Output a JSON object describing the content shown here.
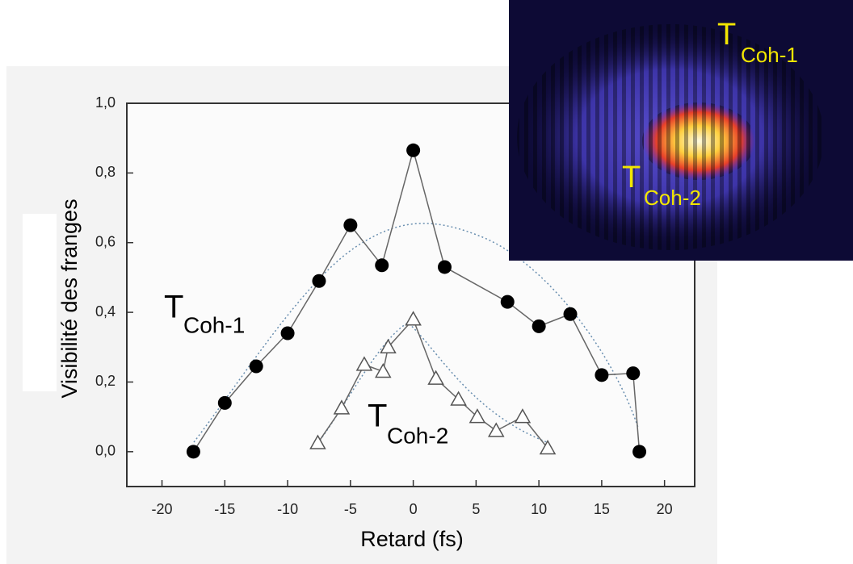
{
  "chart_data": {
    "type": "line",
    "xlabel": "Retard (fs)",
    "ylabel": "Visibilité des franges",
    "xlim": [
      -22.8,
      22.4
    ],
    "ylim": [
      -0.1,
      1.0
    ],
    "xticks": [
      -20,
      -15,
      -10,
      -5,
      0,
      5,
      10,
      15,
      20
    ],
    "yticks": [
      {
        "value": 0,
        "label": "0,0"
      },
      {
        "value": 0.2,
        "label": "0,2"
      },
      {
        "value": 0.4,
        "label": "0,4"
      },
      {
        "value": 0.6,
        "label": "0,6"
      },
      {
        "value": 0.8,
        "label": "0,8"
      },
      {
        "value": 1,
        "label": "1,0"
      }
    ],
    "series": [
      {
        "marker": "circle",
        "color": "#000000",
        "x": [
          -17.5,
          -15,
          -12.5,
          -10,
          -7.5,
          -5,
          -2.5,
          0,
          2.5,
          7.5,
          10,
          12.5,
          15,
          17.5,
          18
        ],
        "values": [
          0.0,
          0.14,
          0.245,
          0.34,
          0.49,
          0.65,
          0.535,
          0.865,
          0.53,
          0.43,
          0.36,
          0.395,
          0.22,
          0.225,
          0.0
        ]
      },
      {
        "marker": "triangle",
        "color": "#ffffff",
        "x": [
          -7.6,
          -5.7,
          -3.9,
          -2.4,
          -2.0,
          0,
          1.8,
          3.6,
          5.1,
          6.6,
          8.7,
          10.7
        ],
        "values": [
          0.025,
          0.125,
          0.25,
          0.23,
          0.3,
          0.38,
          0.21,
          0.15,
          0.1,
          0.06,
          0.1,
          0.01
        ]
      }
    ],
    "annotations": [
      {
        "text": "T",
        "sub": "Coh-1"
      },
      {
        "text": "T",
        "sub": "Coh-2"
      }
    ]
  },
  "inset": {
    "labels": [
      {
        "text": "T",
        "sub": "Coh-1"
      },
      {
        "text": "T",
        "sub": "Coh-2"
      }
    ]
  }
}
